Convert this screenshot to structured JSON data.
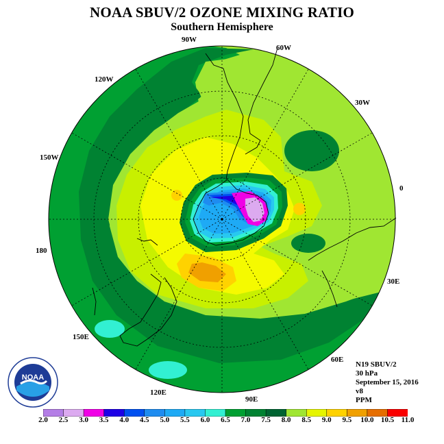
{
  "title": "NOAA SBUV/2 OZONE MIXING RATIO",
  "subtitle": "Southern Hemisphere",
  "longitude_labels": [
    "90W",
    "60W",
    "30W",
    "0",
    "30E",
    "60E",
    "90E",
    "120E",
    "150E",
    "180",
    "150W",
    "120W"
  ],
  "info": {
    "instrument": "N19 SBUV/2",
    "level": "30 hPa",
    "date": "September 15, 2016",
    "version": "v8",
    "units": "PPM"
  },
  "colorbar": {
    "ticks": [
      "2.0",
      "2.5",
      "3.0",
      "3.5",
      "4.0",
      "4.5",
      "5.0",
      "5.5",
      "6.0",
      "6.5",
      "7.0",
      "7.5",
      "8.0",
      "8.5",
      "9.0",
      "9.5",
      "10.0",
      "10.5",
      "11.0"
    ],
    "colors": [
      "#b47ee6",
      "#dcaaf0",
      "#f000e6",
      "#1e00e6",
      "#0050f0",
      "#1e8cf0",
      "#1eaaf5",
      "#28c8f0",
      "#32f0d2",
      "#00a032",
      "#008232",
      "#006432",
      "#a0e632",
      "#e6f500",
      "#ffd200",
      "#f0a000",
      "#e66e00",
      "#fa0000",
      "#96553c"
    ]
  },
  "map_colors": {
    "c6_5": "#00a032",
    "c7_0": "#008232",
    "c7_5": "#a0e632",
    "c8_0": "#c8f000",
    "c8_5": "#f5fa00",
    "c9_0": "#ffd200",
    "c9_5": "#f0a000",
    "c6_0": "#32f0d2",
    "c5_5": "#28c8f0",
    "c5_0": "#1eaaf5",
    "c4_5": "#1e8cf0",
    "c4_0": "#0050f0",
    "c3_5": "#1e00e6",
    "c3_0": "#f000e6",
    "c2_5": "#dcaaf0"
  },
  "logo": {
    "text": "NOAA"
  }
}
